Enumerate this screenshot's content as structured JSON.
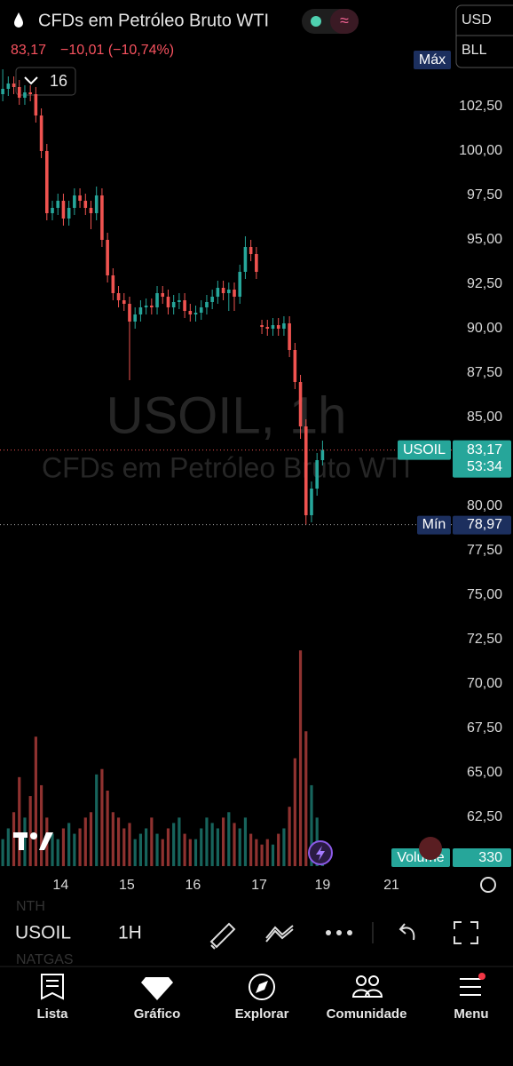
{
  "header": {
    "title": "CFDs em Petróleo Bruto WTI",
    "price": "83,17",
    "change": "−10,01 (−10,74%)",
    "currency": "USD",
    "unit": "BLL",
    "interval_button": "16"
  },
  "chart_data": {
    "type": "candlestick",
    "watermark": "USOIL, 1h",
    "watermark_subtitle": "CFDs em Petróleo Bruto WTI",
    "max_label": "Máx",
    "min_label": "Mín",
    "min_price": {
      "value": 78.97,
      "label": "78,97"
    },
    "last_price": {
      "value": 83.17,
      "label": "83,17"
    },
    "countdown": "53:34",
    "series": [
      {
        "name": "USOIL",
        "up_color": "#26a69a",
        "down_color": "#ef5350",
        "open": [
          103.2,
          103.5,
          103.8,
          103.6,
          103.0,
          103.3,
          103.2,
          102.0,
          100.0,
          96.5,
          96.8,
          97.2,
          96.2,
          96.8,
          97.5,
          97.2,
          96.8,
          96.5,
          97.5,
          95.0,
          93.0,
          92.0,
          91.6,
          91.4,
          90.4,
          90.8,
          91.2,
          91.3,
          91.2,
          92.0,
          91.8,
          91.2,
          91.5,
          91.6,
          91.0,
          90.8,
          90.9,
          91.2,
          91.5,
          91.8,
          92.3,
          92.0,
          92.2,
          91.8,
          93.2,
          94.6,
          94.2,
          90.2,
          90.1,
          90.0,
          90.2,
          90.0,
          90.3,
          88.8,
          87.0,
          84.5,
          79.5,
          81.0,
          82.6
        ],
        "high": [
          104.6,
          104.2,
          104.2,
          104.0,
          103.7,
          103.7,
          103.6,
          102.4,
          100.4,
          97.2,
          97.6,
          97.6,
          97.2,
          97.9,
          97.9,
          97.6,
          97.2,
          98.0,
          97.9,
          95.4,
          93.4,
          92.4,
          92.0,
          91.8,
          91.2,
          91.6,
          91.7,
          91.7,
          92.4,
          92.4,
          92.2,
          91.9,
          92.0,
          92.0,
          91.4,
          91.3,
          91.6,
          91.9,
          92.2,
          92.7,
          92.7,
          92.6,
          92.6,
          93.6,
          95.2,
          95.0,
          94.6,
          90.5,
          90.5,
          90.6,
          90.6,
          90.7,
          90.7,
          89.2,
          87.4,
          84.9,
          81.4,
          83.0,
          83.7
        ],
        "low": [
          102.8,
          103.1,
          103.2,
          102.6,
          102.6,
          102.8,
          101.6,
          99.6,
          96.1,
          96.1,
          96.4,
          95.8,
          95.8,
          96.4,
          96.8,
          96.4,
          95.6,
          96.1,
          94.6,
          92.6,
          91.6,
          91.2,
          91.0,
          87.1,
          90.0,
          90.4,
          90.8,
          90.8,
          90.8,
          91.4,
          90.8,
          90.8,
          91.1,
          90.6,
          90.4,
          90.4,
          90.5,
          90.8,
          91.1,
          91.4,
          91.6,
          91.0,
          91.0,
          91.4,
          92.8,
          93.8,
          92.8,
          89.7,
          89.6,
          89.6,
          89.6,
          89.6,
          88.4,
          86.6,
          83.8,
          78.97,
          79.1,
          80.6,
          82.3
        ],
        "close": [
          103.5,
          103.8,
          103.6,
          103.0,
          103.3,
          103.2,
          102.0,
          100.0,
          96.5,
          96.8,
          97.2,
          96.2,
          96.8,
          97.5,
          97.2,
          96.8,
          96.5,
          97.5,
          95.0,
          93.0,
          92.0,
          91.6,
          91.4,
          90.4,
          90.8,
          91.2,
          91.3,
          91.2,
          92.0,
          91.8,
          91.2,
          91.5,
          91.6,
          91.0,
          90.8,
          90.9,
          91.2,
          91.5,
          91.8,
          92.3,
          92.0,
          92.2,
          91.8,
          93.2,
          94.6,
          94.2,
          93.2,
          90.1,
          90.0,
          90.2,
          90.0,
          90.3,
          88.8,
          87.0,
          84.5,
          79.5,
          81.0,
          82.6,
          83.17
        ]
      }
    ],
    "volume": {
      "name": "Volume",
      "ylim": [
        0,
        4200
      ],
      "values": [
        500,
        700,
        1000,
        1650,
        900,
        1300,
        2400,
        1500,
        900,
        600,
        500,
        700,
        800,
        600,
        700,
        900,
        1000,
        1700,
        1800,
        1400,
        1000,
        900,
        700,
        800,
        500,
        600,
        700,
        900,
        600,
        500,
        700,
        800,
        900,
        600,
        500,
        500,
        700,
        900,
        800,
        700,
        900,
        1000,
        800,
        700,
        900,
        600,
        500,
        400,
        500,
        400,
        600,
        700,
        1100,
        2000,
        4000,
        2500,
        1500,
        900,
        330
      ]
    },
    "xlim": [
      -0.5,
      81.6
    ],
    "xticks": [
      {
        "value": 10.5,
        "label": "14"
      },
      {
        "value": 22.5,
        "label": "15"
      },
      {
        "value": 34.5,
        "label": "16"
      },
      {
        "value": 46.5,
        "label": "17"
      },
      {
        "value": 58,
        "label": "19"
      },
      {
        "value": 70.5,
        "label": "21"
      }
    ],
    "ylim": [
      59.75,
      105.25
    ],
    "yticks": [
      {
        "value": 62.5,
        "label": "62,50"
      },
      {
        "value": 65,
        "label": "65,00"
      },
      {
        "value": 67.5,
        "label": "67,50"
      },
      {
        "value": 70,
        "label": "70,00"
      },
      {
        "value": 72.5,
        "label": "72,50"
      },
      {
        "value": 75,
        "label": "75,00"
      },
      {
        "value": 77.5,
        "label": "77,50"
      },
      {
        "value": 80,
        "label": "80,00"
      },
      {
        "value": 82.5,
        "label": "82,50"
      },
      {
        "value": 85,
        "label": "85,00"
      },
      {
        "value": 87.5,
        "label": "87,50"
      },
      {
        "value": 90,
        "label": "90,00"
      },
      {
        "value": 92.5,
        "label": "92,50"
      },
      {
        "value": 95,
        "label": "95,00"
      },
      {
        "value": 97.5,
        "label": "97,50"
      },
      {
        "value": 100,
        "label": "100,00"
      },
      {
        "value": 102.5,
        "label": "102,50"
      }
    ],
    "grid": false
  },
  "toolbar": {
    "symbol": "USOIL",
    "interval": "1H"
  },
  "watchlist_hint": [
    "NTH",
    "NATGAS"
  ],
  "nav": [
    "Lista",
    "Gráfico",
    "Explorar",
    "Comunidade",
    "Menu"
  ]
}
